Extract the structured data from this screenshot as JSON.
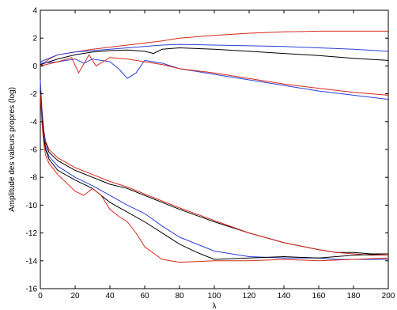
{
  "chart_data": {
    "type": "line",
    "title": "",
    "xlabel": "λ",
    "ylabel": "Amplitude des valeurs propres (log)",
    "xlim": [
      0,
      200
    ],
    "ylim": [
      -16,
      4
    ],
    "xticks": [
      0,
      20,
      40,
      60,
      80,
      100,
      120,
      140,
      160,
      180,
      200
    ],
    "yticks": [
      -16,
      -14,
      -12,
      -10,
      -8,
      -6,
      -4,
      -2,
      0,
      2,
      4
    ],
    "grid": false,
    "legend": "none",
    "series": [
      {
        "color": "#d62a1a",
        "x": [
          0,
          5,
          10,
          20,
          30,
          40,
          50,
          60,
          70,
          80,
          100,
          120,
          140,
          160,
          180,
          200
        ],
        "y": [
          0,
          0.5,
          0.8,
          1.0,
          1.2,
          1.35,
          1.5,
          1.65,
          1.8,
          2.0,
          2.2,
          2.35,
          2.45,
          2.5,
          2.5,
          2.5
        ]
      },
      {
        "color": "#2a3fd6",
        "x": [
          0,
          10,
          20,
          40,
          60,
          70,
          80,
          100,
          120,
          140,
          160,
          180,
          200
        ],
        "y": [
          0.3,
          0.8,
          1.0,
          1.2,
          1.4,
          1.5,
          1.55,
          1.5,
          1.45,
          1.4,
          1.3,
          1.2,
          1.05
        ]
      },
      {
        "color": "#000000",
        "x": [
          0,
          10,
          20,
          30,
          40,
          50,
          60,
          65,
          70,
          80,
          100,
          120,
          140,
          160,
          180,
          200
        ],
        "y": [
          0.1,
          0.5,
          0.8,
          1.0,
          1.1,
          1.15,
          1.05,
          0.9,
          1.2,
          1.3,
          1.2,
          1.05,
          0.9,
          0.75,
          0.55,
          0.4
        ]
      },
      {
        "color": "#2a3fd6",
        "x": [
          0,
          10,
          20,
          25,
          30,
          35,
          40,
          45,
          50,
          55,
          60,
          70,
          80,
          100,
          120,
          140,
          160,
          180,
          200
        ],
        "y": [
          0.2,
          0.3,
          0.5,
          0.2,
          0.5,
          0.4,
          0.3,
          -0.2,
          -0.9,
          -0.5,
          0.4,
          0.2,
          -0.2,
          -0.6,
          -1.0,
          -1.4,
          -1.8,
          -2.1,
          -2.4
        ]
      },
      {
        "color": "#d62a1a",
        "x": [
          0,
          10,
          18,
          22,
          28,
          32,
          40,
          50,
          60,
          70,
          80,
          100,
          120,
          140,
          160,
          180,
          200
        ],
        "y": [
          0,
          0.3,
          0.6,
          -0.5,
          0.8,
          0.0,
          0.6,
          0.5,
          0.3,
          0.1,
          -0.2,
          -0.5,
          -0.9,
          -1.3,
          -1.6,
          -1.9,
          -2.1
        ]
      },
      {
        "color": "#000000",
        "x": [
          0,
          1,
          2,
          3,
          5,
          10,
          20,
          30,
          40,
          50,
          60,
          80,
          100,
          120,
          140,
          160,
          170,
          180,
          190,
          200
        ],
        "y": [
          -1.5,
          -3.5,
          -4.8,
          -5.5,
          -6.2,
          -6.8,
          -7.5,
          -8.0,
          -8.5,
          -8.8,
          -9.3,
          -10.3,
          -11.2,
          -12.0,
          -12.7,
          -13.2,
          -13.4,
          -13.4,
          -13.5,
          -13.5
        ]
      },
      {
        "color": "#d62a1a",
        "x": [
          0,
          1,
          2,
          3,
          5,
          10,
          20,
          30,
          40,
          50,
          60,
          80,
          100,
          120,
          140,
          160,
          170,
          180,
          190,
          200
        ],
        "y": [
          -1.2,
          -3.2,
          -4.6,
          -5.4,
          -6.0,
          -6.6,
          -7.3,
          -7.8,
          -8.3,
          -8.7,
          -9.2,
          -10.2,
          -11.1,
          -12.0,
          -12.7,
          -13.2,
          -13.4,
          -13.5,
          -13.6,
          -13.6
        ]
      },
      {
        "color": "#2a3fd6",
        "x": [
          0,
          1,
          2,
          3,
          5,
          10,
          20,
          30,
          40,
          50,
          60,
          70,
          80,
          100,
          120,
          140,
          160,
          170,
          180,
          190,
          200
        ],
        "y": [
          -1.0,
          -3.4,
          -4.9,
          -5.8,
          -6.5,
          -7.2,
          -8.0,
          -8.6,
          -9.3,
          -10.0,
          -10.6,
          -11.5,
          -12.3,
          -13.3,
          -13.7,
          -13.8,
          -13.8,
          -13.9,
          -13.9,
          -13.9,
          -13.9
        ]
      },
      {
        "color": "#000000",
        "x": [
          0,
          1,
          2,
          3,
          5,
          10,
          20,
          30,
          40,
          50,
          60,
          70,
          80,
          90,
          100,
          120,
          140,
          160,
          180,
          200
        ],
        "y": [
          -1.8,
          -3.8,
          -5.2,
          -6.0,
          -6.7,
          -7.5,
          -8.2,
          -8.8,
          -9.8,
          -10.5,
          -11.2,
          -12.0,
          -12.8,
          -13.4,
          -13.9,
          -13.8,
          -13.7,
          -13.8,
          -13.6,
          -13.5
        ]
      },
      {
        "color": "#d62a1a",
        "x": [
          0,
          1,
          2,
          3,
          5,
          10,
          15,
          20,
          25,
          30,
          35,
          40,
          45,
          50,
          55,
          60,
          70,
          80,
          100,
          120,
          140,
          160,
          180,
          200
        ],
        "y": [
          -2.0,
          -4.2,
          -5.6,
          -6.4,
          -7.0,
          -7.8,
          -8.4,
          -9.0,
          -9.3,
          -8.8,
          -9.3,
          -10.3,
          -10.8,
          -11.2,
          -12.0,
          -13.0,
          -13.9,
          -14.1,
          -14.0,
          -14.0,
          -13.9,
          -14.0,
          -13.9,
          -13.8
        ]
      }
    ]
  }
}
